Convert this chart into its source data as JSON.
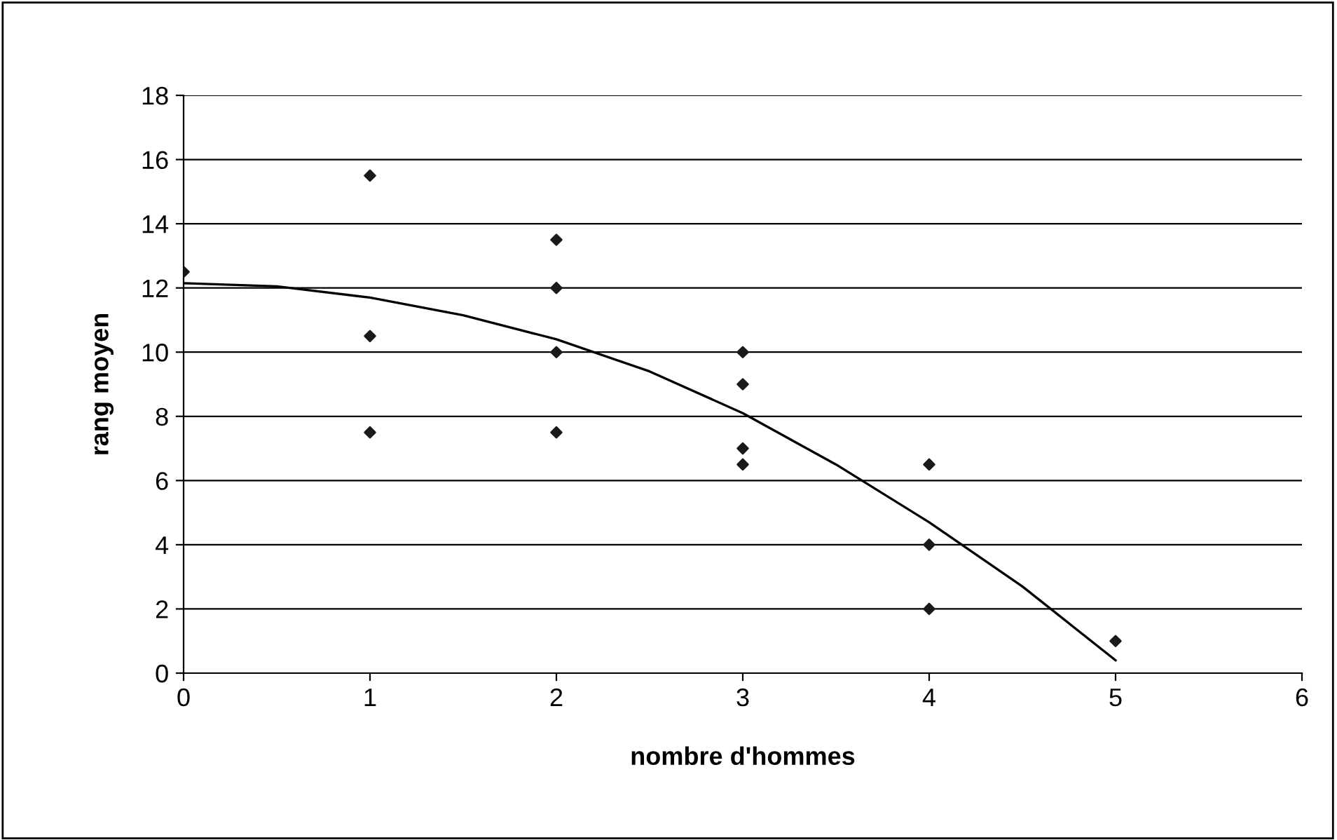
{
  "chart_data": {
    "type": "scatter",
    "xlabel": "nombre d'hommes",
    "ylabel": "rang moyen",
    "series": [
      {
        "color": "#1a1a1a",
        "marker": "diamond",
        "x": [
          0,
          1,
          1,
          1,
          2,
          2,
          2,
          2,
          3,
          3,
          3,
          3,
          4,
          4,
          4,
          5
        ],
        "values": [
          12.5,
          15.5,
          10.5,
          7.5,
          13.5,
          12,
          10,
          7.5,
          10,
          9,
          7,
          6.5,
          6.5,
          4,
          2,
          1
        ]
      },
      {
        "type": "line",
        "color": "#000000",
        "marker": "none",
        "x": [
          0,
          0.5,
          1,
          1.5,
          2,
          2.5,
          3,
          3.5,
          4,
          4.5,
          5
        ],
        "values": [
          12.15,
          12.05,
          11.7,
          11.15,
          10.4,
          9.4,
          8.1,
          6.5,
          4.7,
          2.7,
          0.4
        ]
      }
    ],
    "xlim": [
      0,
      6
    ],
    "xticks": [
      0,
      1,
      2,
      3,
      4,
      5,
      6
    ],
    "ylim": [
      0,
      18
    ],
    "yticks": [
      0,
      2,
      4,
      6,
      8,
      10,
      12,
      14,
      16,
      18
    ],
    "grid": "y",
    "legend": false
  }
}
